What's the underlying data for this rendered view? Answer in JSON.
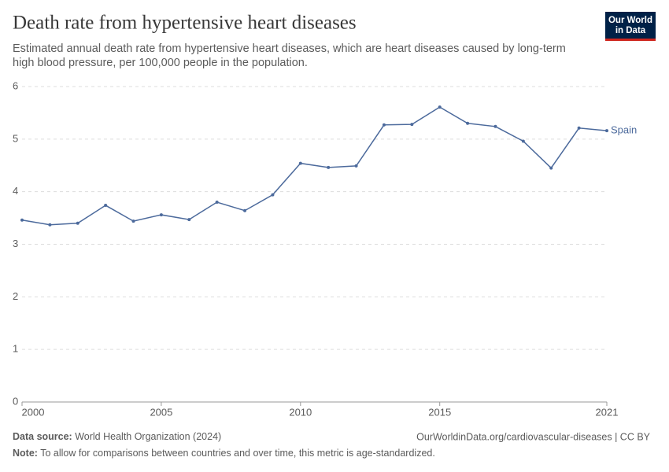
{
  "chart_data": {
    "type": "line",
    "title": "Death rate from hypertensive heart diseases",
    "subtitle": [
      "Estimated annual death rate from hypertensive heart diseases, which are heart diseases caused by long-term",
      "high blood pressure, per 100,000 people in the population."
    ],
    "logo": [
      "Our World",
      "in Data"
    ],
    "source_label": "Data source:",
    "source": "World Health Organization (2024)",
    "url": "OurWorldinData.org/cardiovascular-diseases | CC BY",
    "note_label": "Note:",
    "note": "To allow for comparisons between countries and over time, this metric is age-standardized.",
    "x": [
      2000,
      2001,
      2002,
      2003,
      2004,
      2005,
      2006,
      2007,
      2008,
      2009,
      2010,
      2011,
      2012,
      2013,
      2014,
      2015,
      2016,
      2017,
      2018,
      2019,
      2020,
      2021
    ],
    "series": [
      {
        "name": "Spain",
        "color": "#4c6a9c",
        "values": [
          3.46,
          3.37,
          3.4,
          3.74,
          3.44,
          3.56,
          3.47,
          3.8,
          3.64,
          3.94,
          4.54,
          4.46,
          4.49,
          5.27,
          5.28,
          5.61,
          5.3,
          5.24,
          4.96,
          4.45,
          5.21,
          5.16
        ]
      }
    ],
    "xlim": [
      2000,
      2021
    ],
    "xticks": [
      2000,
      2005,
      2010,
      2015,
      2021
    ],
    "ylim": [
      0,
      6
    ],
    "yticks": [
      0,
      1,
      2,
      3,
      4,
      5,
      6
    ],
    "grid": true
  }
}
